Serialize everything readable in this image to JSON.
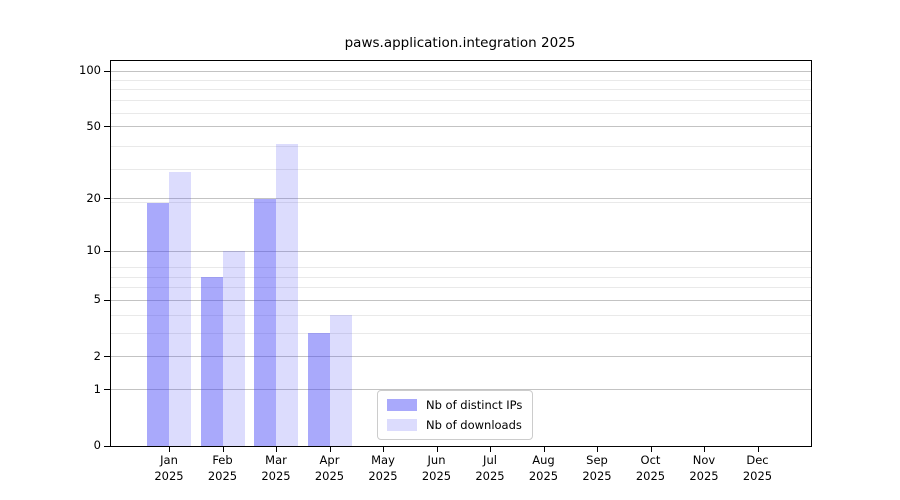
{
  "title": "paws.application.integration 2025",
  "chart_data": {
    "type": "bar",
    "title": "paws.application.integration 2025",
    "categories": [
      "Jan 2025",
      "Feb 2025",
      "Mar 2025",
      "Apr 2025",
      "May 2025",
      "Jun 2025",
      "Jul 2025",
      "Aug 2025",
      "Sep 2025",
      "Oct 2025",
      "Nov 2025",
      "Dec 2025"
    ],
    "series": [
      {
        "name": "Nb of distinct IPs",
        "color": "rgba(68,68,247,0.46)",
        "values": [
          19,
          7,
          20,
          3,
          0,
          0,
          0,
          0,
          0,
          0,
          0,
          0
        ]
      },
      {
        "name": "Nb of downloads",
        "color": "rgba(68,68,247,0.19)",
        "values": [
          28,
          10,
          40,
          4,
          0,
          0,
          0,
          0,
          0,
          0,
          0,
          0
        ]
      }
    ],
    "xlabel": "",
    "ylabel": "",
    "yscale": "log1p",
    "yticks": [
      0,
      1,
      2,
      5,
      10,
      20,
      50,
      100
    ],
    "ylim": [
      0,
      110
    ],
    "grid": true,
    "legend_position": "lower-center-inside",
    "colors": {
      "major_grid": "#c3c3c3",
      "minor_grid": "#e9e9e9",
      "spine": "#000000",
      "background": "#ffffff",
      "text": "#000000"
    }
  }
}
